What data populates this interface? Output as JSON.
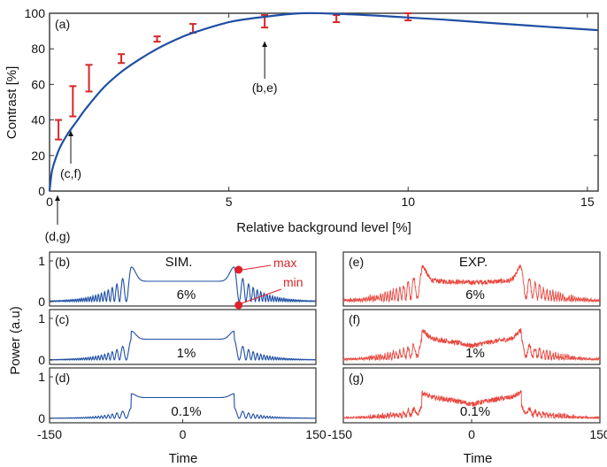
{
  "chart_data": [
    {
      "type": "line",
      "panel_label": "(a)",
      "xlabel": "Relative background level [%]",
      "ylabel": "Contrast [%]",
      "xlim": [
        0,
        15.3
      ],
      "ylim": [
        0,
        100
      ],
      "x_ticks": [
        "0",
        "5",
        "10",
        "15"
      ],
      "y_ticks": [
        "0",
        "20",
        "40",
        "60",
        "80",
        "100"
      ],
      "grid": false,
      "line_color": "#1f4fa3",
      "errorbar_color": "#d62728",
      "curve": {
        "x": [
          0,
          0.05,
          0.1,
          0.2,
          0.3,
          0.5,
          0.75,
          1,
          1.5,
          2,
          2.5,
          3,
          3.5,
          4,
          5,
          6,
          7,
          8,
          9,
          10,
          11,
          12,
          13,
          14,
          15.3
        ],
        "y": [
          0,
          9,
          14,
          20,
          25,
          32,
          39,
          46,
          58,
          67,
          74,
          80,
          85,
          89,
          95,
          98,
          100,
          99.7,
          98.8,
          97.6,
          96.4,
          95,
          93.6,
          92.2,
          90.5
        ]
      },
      "error_bars": [
        {
          "x": 0.25,
          "low": 29,
          "high": 40
        },
        {
          "x": 0.65,
          "low": 42,
          "high": 59
        },
        {
          "x": 1.1,
          "low": 56,
          "high": 71
        },
        {
          "x": 2.0,
          "low": 72,
          "high": 77
        },
        {
          "x": 3.0,
          "low": 84,
          "high": 87
        },
        {
          "x": 4.0,
          "low": 89,
          "high": 94
        },
        {
          "x": 6.0,
          "low": 92,
          "high": 99
        },
        {
          "x": 8.0,
          "low": 95,
          "high": 99
        },
        {
          "x": 10.0,
          "low": 96,
          "high": 100
        }
      ],
      "annotations": [
        {
          "text": "(b,e)",
          "x": 6.0,
          "y": 85
        },
        {
          "text": "(c,f)",
          "x": 0.6,
          "y": 35
        },
        {
          "text": "(d,g)",
          "x": 0.25,
          "y": 0
        }
      ]
    },
    {
      "type": "line",
      "group_title": "SIM.",
      "xlabel": "Time",
      "xlim": [
        -150,
        150
      ],
      "x_ticks": [
        "-150",
        "0",
        "150"
      ],
      "y_ticks": [
        "0",
        "1"
      ],
      "line_color": "#1f4fa3",
      "panels": [
        {
          "label": "(b)",
          "level": "6%",
          "background": 0.06
        },
        {
          "label": "(c)",
          "level": "1%",
          "background": 0.01
        },
        {
          "label": "(d)",
          "level": "0.1%",
          "background": 0.001
        }
      ],
      "markers": [
        {
          "text": "max",
          "color": "#d62728"
        },
        {
          "text": "min",
          "color": "#d62728"
        }
      ]
    },
    {
      "type": "line",
      "group_title": "EXP.",
      "xlabel": "Time",
      "xlim": [
        -150,
        150
      ],
      "x_ticks": [
        "-150",
        "0",
        "150"
      ],
      "line_color": "#e8473f",
      "panels": [
        {
          "label": "(e)",
          "level": "6%",
          "background": 0.06
        },
        {
          "label": "(f)",
          "level": "1%",
          "background": 0.01
        },
        {
          "label": "(g)",
          "level": "0.1%",
          "background": 0.001
        }
      ]
    }
  ],
  "shared": {
    "ylabel_bottom": "Power (a.u)"
  }
}
